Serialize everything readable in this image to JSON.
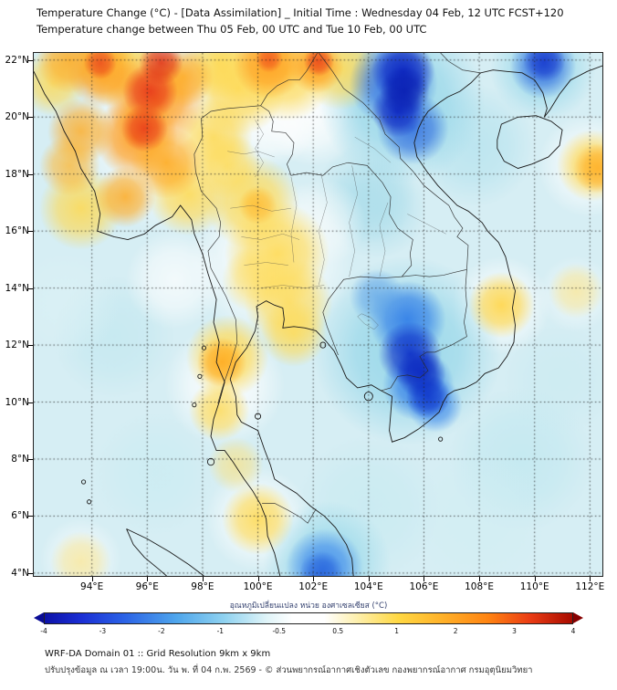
{
  "header": {
    "title_line1": "Temperature Change (°C) - [Data Assimilation] _ Initial Time : Wednesday 04 Feb, 12 UTC FCST+120",
    "title_line2": "Temperature change between Thu 05 Feb, 00 UTC and Tue 10 Feb, 00 UTC"
  },
  "axes": {
    "lat_ticks": [
      {
        "v": 22,
        "label": "22°N"
      },
      {
        "v": 20,
        "label": "20°N"
      },
      {
        "v": 18,
        "label": "18°N"
      },
      {
        "v": 16,
        "label": "16°N"
      },
      {
        "v": 14,
        "label": "14°N"
      },
      {
        "v": 12,
        "label": "12°N"
      },
      {
        "v": 10,
        "label": "10°N"
      },
      {
        "v": 8,
        "label": "8°N"
      },
      {
        "v": 6,
        "label": "6°N"
      },
      {
        "v": 4,
        "label": "4°N"
      }
    ],
    "lon_ticks": [
      {
        "v": 94,
        "label": "94°E"
      },
      {
        "v": 96,
        "label": "96°E"
      },
      {
        "v": 98,
        "label": "98°E"
      },
      {
        "v": 100,
        "label": "100°E"
      },
      {
        "v": 102,
        "label": "102°E"
      },
      {
        "v": 104,
        "label": "104°E"
      },
      {
        "v": 106,
        "label": "106°E"
      },
      {
        "v": 108,
        "label": "108°E"
      },
      {
        "v": 110,
        "label": "110°E"
      },
      {
        "v": 112,
        "label": "112°E"
      }
    ]
  },
  "colorbar": {
    "label": "อุณหภูมิเปลี่ยนแปลง หน่วย องศาเซลเซียส (°C)",
    "ticks": [
      "-4",
      "-3",
      "-2",
      "-1",
      "-0.5",
      "0.5",
      "1",
      "2",
      "3",
      "4"
    ],
    "arrow_left": "#0a0c96",
    "arrow_right": "#870000",
    "stops": [
      {
        "p": 0,
        "c": "#0d12a8"
      },
      {
        "p": 7,
        "c": "#1b2fd4"
      },
      {
        "p": 15,
        "c": "#2b62e6"
      },
      {
        "p": 25,
        "c": "#4fa6ec"
      },
      {
        "p": 34,
        "c": "#8fd2f0"
      },
      {
        "p": 42,
        "c": "#dff4f8"
      },
      {
        "p": 47,
        "c": "#ffffff"
      },
      {
        "p": 53,
        "c": "#ffffff"
      },
      {
        "p": 59,
        "c": "#fdf0b0"
      },
      {
        "p": 67,
        "c": "#ffd843"
      },
      {
        "p": 75,
        "c": "#ffb32a"
      },
      {
        "p": 84,
        "c": "#ff8412"
      },
      {
        "p": 92,
        "c": "#ea3c14"
      },
      {
        "p": 100,
        "c": "#a80b00"
      }
    ]
  },
  "footer": {
    "line1": "WRF-DA Domain 01 :: Grid Resolution 9km x 9km",
    "line2": "ปรับปรุงข้อมูล ณ เวลา 19:00น. วัน พ. ที่ 04 ก.พ. 2569 - © ส่วนพยากรณ์อากาศเชิงตัวเลข กองพยากรณ์อากาศ กรมอุตุนิยมวิทยา"
  },
  "chart_data": {
    "type": "heatmap",
    "title": "Temperature change (°C) between Thu 05 Feb 00 UTC and Tue 10 Feb 00 UTC",
    "units": "°C",
    "value_range": [
      -4,
      4
    ],
    "lon_range": [
      91.9,
      112.45
    ],
    "lat_range": [
      3.9,
      22.25
    ],
    "base_color": "#d6eef4",
    "warm_centers": [
      {
        "lon": 96.2,
        "lat": 20.7,
        "value": 3.5
      },
      {
        "lon": 95.9,
        "lat": 19.5,
        "value": 3.0
      },
      {
        "lon": 100.4,
        "lat": 21.9,
        "value": 2.5
      },
      {
        "lon": 102.1,
        "lat": 21.9,
        "value": 2.5
      },
      {
        "lon": 100.6,
        "lat": 15.0,
        "value": 1.5
      },
      {
        "lon": 98.7,
        "lat": 11.4,
        "value": 2.0
      },
      {
        "lon": 108.8,
        "lat": 13.4,
        "value": 1.5
      },
      {
        "lon": 112.2,
        "lat": 18.3,
        "value": 2.0
      },
      {
        "lon": 100.0,
        "lat": 5.9,
        "value": 1.0
      }
    ],
    "cool_centers": [
      {
        "lon": 105.3,
        "lat": 21.3,
        "value": -3.5
      },
      {
        "lon": 105.1,
        "lat": 20.2,
        "value": -3.0
      },
      {
        "lon": 105.6,
        "lat": 11.3,
        "value": -3.0
      },
      {
        "lon": 110.3,
        "lat": 21.9,
        "value": -2.5
      },
      {
        "lon": 102.4,
        "lat": 4.2,
        "value": -2.0
      }
    ],
    "anomalies": [
      [
        94.8,
        12.3,
        2.2,
        "#c2e8f0",
        0.7
      ],
      [
        96.3,
        7.5,
        2.2,
        "#c8ecf2",
        0.6
      ],
      [
        109.5,
        8.0,
        2.6,
        "#bfe8f0",
        0.7
      ],
      [
        104.0,
        6.3,
        2.6,
        "#c4eaf1",
        0.6
      ],
      [
        107.8,
        19.0,
        2.2,
        "#b2e2ee",
        0.7
      ],
      [
        103.9,
        17.3,
        1.8,
        "#b0e0ec",
        0.7
      ],
      [
        104.3,
        16.8,
        1.8,
        "#a8dcea",
        0.6
      ],
      [
        93.0,
        13.5,
        2.0,
        "#dcf2f6",
        0.6
      ],
      [
        108.0,
        6.0,
        2.4,
        "#d0eef3",
        0.5
      ],
      [
        110.9,
        10.8,
        2.0,
        "#c6eaf1",
        0.5
      ],
      [
        97.0,
        19.5,
        3.8,
        "#ffffff",
        0.85
      ],
      [
        100.9,
        21.5,
        3.0,
        "#ffffff",
        0.8
      ],
      [
        100.5,
        15.0,
        3.0,
        "#ffffff",
        0.85
      ],
      [
        98.8,
        10.6,
        2.2,
        "#ffffff",
        0.85
      ],
      [
        100.0,
        5.9,
        1.9,
        "#ffffff",
        0.8
      ],
      [
        108.8,
        13.4,
        1.8,
        "#ffffff",
        0.8
      ],
      [
        112.0,
        18.3,
        1.9,
        "#ffffff",
        0.8
      ],
      [
        97.0,
        14.3,
        1.8,
        "#ffffff",
        0.7
      ],
      [
        102.0,
        19.9,
        1.7,
        "#ffffff",
        0.75
      ],
      [
        100.6,
        19.6,
        1.4,
        "#ffffff",
        0.7
      ],
      [
        111.5,
        13.8,
        1.4,
        "#ffffff",
        0.5
      ],
      [
        93.6,
        4.5,
        1.5,
        "#ffffff",
        0.6
      ],
      [
        102.3,
        16.3,
        1.6,
        "#f4fafb",
        0.7
      ],
      [
        105.4,
        11.8,
        3.4,
        "#8ed4e8",
        0.85
      ],
      [
        105.2,
        20.6,
        3.0,
        "#8ed4e8",
        0.85
      ],
      [
        110.3,
        21.7,
        1.9,
        "#96d8ea",
        0.8
      ],
      [
        102.5,
        4.3,
        2.3,
        "#96d8ea",
        0.8
      ],
      [
        93.6,
        16.8,
        1.5,
        "#ffd94f",
        0.85
      ],
      [
        95.0,
        21.9,
        1.6,
        "#ffd94f",
        0.9
      ],
      [
        92.6,
        21.2,
        1.2,
        "#ffd94f",
        0.8
      ],
      [
        99.3,
        21.0,
        1.7,
        "#ffd94f",
        0.9
      ],
      [
        98.6,
        21.9,
        1.3,
        "#ffd94f",
        0.85
      ],
      [
        101.0,
        21.6,
        1.8,
        "#ffd94f",
        0.9
      ],
      [
        103.0,
        21.7,
        1.5,
        "#ffd94f",
        0.85
      ],
      [
        97.5,
        17.3,
        1.5,
        "#ffd94f",
        0.85
      ],
      [
        98.4,
        19.3,
        1.4,
        "#ffd94f",
        0.85
      ],
      [
        98.9,
        18.3,
        1.2,
        "#ffdb55",
        0.8
      ],
      [
        99.8,
        17.0,
        1.7,
        "#ffdb55",
        0.9
      ],
      [
        100.7,
        15.2,
        1.9,
        "#ffdb55",
        0.9
      ],
      [
        101.1,
        13.5,
        1.6,
        "#ffdb55",
        0.85
      ],
      [
        101.3,
        12.4,
        1.2,
        "#ffdb55",
        0.8
      ],
      [
        99.9,
        14.3,
        1.2,
        "#ffdf66",
        0.7
      ],
      [
        98.9,
        11.6,
        1.5,
        "#ffd94f",
        0.9
      ],
      [
        98.6,
        9.7,
        1.1,
        "#ffd94f",
        0.8
      ],
      [
        99.2,
        7.8,
        1.0,
        "#ffe070",
        0.6
      ],
      [
        100.0,
        5.9,
        1.3,
        "#ffd94f",
        0.85
      ],
      [
        108.8,
        13.4,
        1.2,
        "#ffd649",
        0.9
      ],
      [
        112.1,
        18.3,
        1.3,
        "#ffd649",
        0.85
      ],
      [
        111.5,
        13.9,
        1.0,
        "#ffe070",
        0.55
      ],
      [
        93.6,
        4.4,
        1.1,
        "#ffe070",
        0.55
      ],
      [
        96.3,
        20.6,
        1.8,
        "#ff9d1d",
        0.95
      ],
      [
        95.6,
        19.3,
        1.5,
        "#ff9d1d",
        0.95
      ],
      [
        96.7,
        18.4,
        1.3,
        "#ffab22",
        0.9
      ],
      [
        94.4,
        21.6,
        1.3,
        "#ff9d1d",
        0.9
      ],
      [
        93.2,
        22.0,
        1.2,
        "#ffab22",
        0.85
      ],
      [
        93.6,
        19.5,
        1.2,
        "#ffab22",
        0.8
      ],
      [
        93.2,
        18.3,
        1.1,
        "#ffb62e",
        0.75
      ],
      [
        95.2,
        17.2,
        1.1,
        "#ffab22",
        0.85
      ],
      [
        97.3,
        21.4,
        1.1,
        "#ffab22",
        0.85
      ],
      [
        100.4,
        21.9,
        1.3,
        "#ff9d1d",
        0.9
      ],
      [
        102.1,
        21.8,
        1.0,
        "#ff9d1d",
        0.85
      ],
      [
        98.7,
        11.4,
        0.9,
        "#ffab22",
        0.9
      ],
      [
        112.3,
        18.2,
        0.9,
        "#ffab22",
        0.8
      ],
      [
        100.0,
        16.9,
        0.7,
        "#ffb62e",
        0.7
      ],
      [
        96.1,
        20.9,
        1.0,
        "#e8381a",
        0.9
      ],
      [
        95.9,
        19.6,
        0.85,
        "#e8381a",
        0.85
      ],
      [
        96.5,
        21.9,
        0.8,
        "#e03014",
        0.85
      ],
      [
        94.3,
        21.9,
        0.6,
        "#e8381a",
        0.7
      ],
      [
        102.2,
        21.95,
        0.55,
        "#e8381a",
        0.75
      ],
      [
        100.4,
        22.05,
        0.5,
        "#ef4a1e",
        0.7
      ],
      [
        105.4,
        12.9,
        1.4,
        "#2f7ce8",
        0.9
      ],
      [
        105.8,
        10.6,
        1.3,
        "#2f7ce8",
        0.9
      ],
      [
        104.9,
        21.2,
        1.6,
        "#2f6ce0",
        0.9
      ],
      [
        105.6,
        19.6,
        1.3,
        "#2f6ce0",
        0.85
      ],
      [
        110.3,
        21.8,
        1.2,
        "#2f6ce0",
        0.85
      ],
      [
        102.4,
        4.2,
        1.4,
        "#3a86ec",
        0.85
      ],
      [
        104.3,
        13.7,
        1.0,
        "#5aa0e8",
        0.7
      ],
      [
        106.4,
        9.9,
        1.0,
        "#3a86ec",
        0.8
      ],
      [
        105.5,
        11.7,
        1.15,
        "#0b2ec8",
        0.9
      ],
      [
        105.9,
        11.0,
        0.9,
        "#0a24be",
        0.85
      ],
      [
        106.15,
        10.2,
        0.8,
        "#0b2ec8",
        0.8
      ],
      [
        105.25,
        21.6,
        1.15,
        "#0a22c0",
        0.9
      ],
      [
        105.05,
        20.2,
        0.95,
        "#0a22c0",
        0.85
      ],
      [
        105.3,
        20.9,
        0.9,
        "#071bb0",
        0.8
      ],
      [
        110.35,
        21.95,
        0.75,
        "#1434cc",
        0.8
      ],
      [
        102.3,
        4.0,
        0.8,
        "#2058d8",
        0.7
      ]
    ]
  }
}
